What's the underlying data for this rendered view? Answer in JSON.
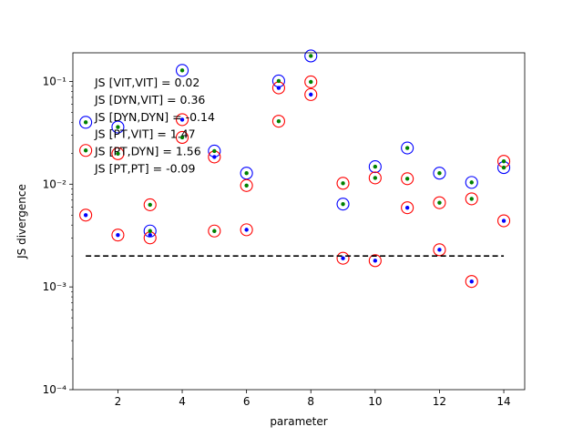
{
  "chart_data": {
    "type": "scatter",
    "xlabel": "parameter",
    "ylabel": "JS divergence",
    "xlim": [
      0.6,
      14.65
    ],
    "ylim": [
      0.0001,
      0.19
    ],
    "yscale": "log",
    "x_ticks": [
      2,
      4,
      6,
      8,
      10,
      12,
      14
    ],
    "x_tick_labels": [
      "2",
      "4",
      "6",
      "8",
      "10",
      "12",
      "14"
    ],
    "y_ticks": [
      0.0001,
      0.001,
      0.01,
      0.1
    ],
    "y_tick_labels": [
      "10⁻⁴",
      "10⁻³",
      "10⁻²",
      "10⁻¹"
    ],
    "grid": false,
    "colors": {
      "ring_blue": "#0000ff",
      "ring_red": "#ff0000",
      "dot_blue": "#0000ff",
      "dot_green": "#008000",
      "threshold": "#000000"
    },
    "threshold": {
      "y": 0.002,
      "x_range": [
        1,
        14
      ],
      "style": "dashed"
    },
    "annotations": [
      "JS [VIT,VIT] = 0.02",
      "JS [DYN,VIT] = 0.36",
      "JS [DYN,DYN] = -0.14",
      "JS [PT,VIT] = 1.47",
      "JS [PT,DYN] = 1.56",
      "JS [PT,PT] = -0.09"
    ],
    "series": [
      {
        "marker": "ring",
        "color": "#0000ff",
        "points": [
          [
            1,
            0.04
          ],
          [
            2,
            0.036
          ],
          [
            3,
            0.0035
          ],
          [
            4,
            0.128
          ],
          [
            5,
            0.021
          ],
          [
            6,
            0.0128
          ],
          [
            7,
            0.101
          ],
          [
            8,
            0.177
          ],
          [
            9,
            0.0064
          ],
          [
            10,
            0.0148
          ],
          [
            11,
            0.0225
          ],
          [
            12,
            0.0128
          ],
          [
            13,
            0.0104
          ],
          [
            14,
            0.0145
          ]
        ]
      },
      {
        "marker": "ring",
        "color": "#ff0000",
        "points": [
          [
            1,
            0.0213
          ],
          [
            1,
            0.005
          ],
          [
            2,
            0.0198
          ],
          [
            2,
            0.0032
          ],
          [
            3,
            0.0063
          ],
          [
            3,
            0.003
          ],
          [
            4,
            0.0425
          ],
          [
            4,
            0.0285
          ],
          [
            5,
            0.0184
          ],
          [
            5,
            0.0035
          ],
          [
            6,
            0.0097
          ],
          [
            6,
            0.0036
          ],
          [
            7,
            0.0865
          ],
          [
            7,
            0.041
          ],
          [
            8,
            0.099
          ],
          [
            8,
            0.0745
          ],
          [
            9,
            0.0102
          ],
          [
            9,
            0.0019
          ],
          [
            10,
            0.0115
          ],
          [
            10,
            0.0018
          ],
          [
            11,
            0.0113
          ],
          [
            11,
            0.0059
          ],
          [
            12,
            0.0066
          ],
          [
            12,
            0.0023
          ],
          [
            13,
            0.0072
          ],
          [
            13,
            0.00113
          ],
          [
            14,
            0.0167
          ],
          [
            14,
            0.0044
          ]
        ]
      },
      {
        "marker": "dot",
        "color": "#0000ff",
        "points": [
          [
            1,
            0.005
          ],
          [
            2,
            0.0032
          ],
          [
            3,
            0.0032
          ],
          [
            4,
            0.0425
          ],
          [
            5,
            0.0184
          ],
          [
            6,
            0.0036
          ],
          [
            7,
            0.0865
          ],
          [
            8,
            0.0745
          ],
          [
            9,
            0.0019
          ],
          [
            10,
            0.0018
          ],
          [
            11,
            0.0059
          ],
          [
            12,
            0.0023
          ],
          [
            13,
            0.00113
          ],
          [
            14,
            0.0044
          ]
        ]
      },
      {
        "marker": "dot",
        "color": "#008000",
        "points": [
          [
            1,
            0.04
          ],
          [
            1,
            0.0213
          ],
          [
            2,
            0.036
          ],
          [
            2,
            0.0198
          ],
          [
            3,
            0.0063
          ],
          [
            3,
            0.0035
          ],
          [
            4,
            0.128
          ],
          [
            4,
            0.0285
          ],
          [
            5,
            0.021
          ],
          [
            5,
            0.0035
          ],
          [
            6,
            0.0128
          ],
          [
            6,
            0.0097
          ],
          [
            7,
            0.101
          ],
          [
            7,
            0.041
          ],
          [
            8,
            0.177
          ],
          [
            8,
            0.099
          ],
          [
            9,
            0.0102
          ],
          [
            9,
            0.0064
          ],
          [
            10,
            0.0148
          ],
          [
            10,
            0.0115
          ],
          [
            11,
            0.0225
          ],
          [
            11,
            0.0113
          ],
          [
            12,
            0.0128
          ],
          [
            12,
            0.0066
          ],
          [
            13,
            0.0104
          ],
          [
            13,
            0.0072
          ],
          [
            14,
            0.0167
          ],
          [
            14,
            0.0145
          ]
        ]
      }
    ]
  }
}
